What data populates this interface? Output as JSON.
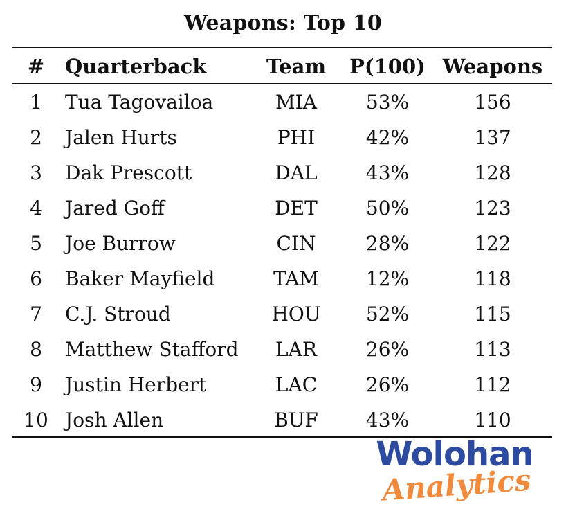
{
  "title": "Weapons: Top 10",
  "columns": {
    "rank": "#",
    "quarterback": "Quarterback",
    "team": "Team",
    "p100": "P(100)",
    "weapons": "Weapons"
  },
  "rows": [
    {
      "rank": "1",
      "quarterback": "Tua Tagovailoa",
      "team": "MIA",
      "p100": "53%",
      "weapons": "156"
    },
    {
      "rank": "2",
      "quarterback": "Jalen Hurts",
      "team": "PHI",
      "p100": "42%",
      "weapons": "137"
    },
    {
      "rank": "3",
      "quarterback": "Dak Prescott",
      "team": "DAL",
      "p100": "43%",
      "weapons": "128"
    },
    {
      "rank": "4",
      "quarterback": "Jared Goff",
      "team": "DET",
      "p100": "50%",
      "weapons": "123"
    },
    {
      "rank": "5",
      "quarterback": "Joe Burrow",
      "team": "CIN",
      "p100": "28%",
      "weapons": "122"
    },
    {
      "rank": "6",
      "quarterback": "Baker Mayfield",
      "team": "TAM",
      "p100": "12%",
      "weapons": "118"
    },
    {
      "rank": "7",
      "quarterback": "C.J. Stroud",
      "team": "HOU",
      "p100": "52%",
      "weapons": "115"
    },
    {
      "rank": "8",
      "quarterback": "Matthew Stafford",
      "team": "LAR",
      "p100": "26%",
      "weapons": "113"
    },
    {
      "rank": "9",
      "quarterback": "Justin Herbert",
      "team": "LAC",
      "p100": "26%",
      "weapons": "112"
    },
    {
      "rank": "10",
      "quarterback": "Josh Allen",
      "team": "BUF",
      "p100": "43%",
      "weapons": "110"
    }
  ],
  "chart_data": {
    "type": "table",
    "title": "Weapons: Top 10",
    "headers": [
      "#",
      "Quarterback",
      "Team",
      "P(100)",
      "Weapons"
    ],
    "rows": [
      [
        "1",
        "Tua Tagovailoa",
        "MIA",
        "53%",
        "156"
      ],
      [
        "2",
        "Jalen Hurts",
        "PHI",
        "42%",
        "137"
      ],
      [
        "3",
        "Dak Prescott",
        "DAL",
        "43%",
        "128"
      ],
      [
        "4",
        "Jared Goff",
        "DET",
        "50%",
        "123"
      ],
      [
        "5",
        "Joe Burrow",
        "CIN",
        "28%",
        "122"
      ],
      [
        "6",
        "Baker Mayfield",
        "TAM",
        "12%",
        "118"
      ],
      [
        "7",
        "C.J. Stroud",
        "HOU",
        "52%",
        "115"
      ],
      [
        "8",
        "Matthew Stafford",
        "LAR",
        "26%",
        "113"
      ],
      [
        "9",
        "Justin Herbert",
        "LAC",
        "26%",
        "112"
      ],
      [
        "10",
        "Josh Allen",
        "BUF",
        "43%",
        "110"
      ]
    ]
  },
  "logo": {
    "line1": "Wolohan",
    "line2": "Analytics",
    "color_primary": "#2b4aa0",
    "color_accent": "#f08a3c"
  }
}
